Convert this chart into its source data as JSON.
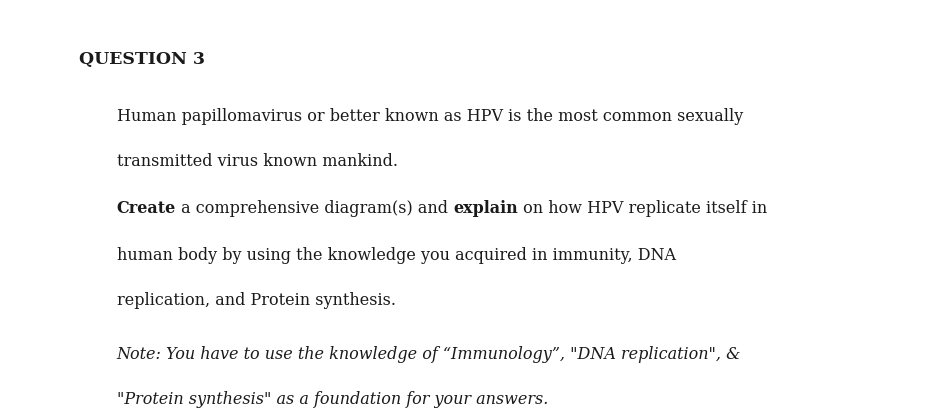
{
  "background_color": "#ffffff",
  "heading": "QUESTION 3",
  "paragraph1_line1": "Human papillomavirus or better known as HPV is the most common sexually",
  "paragraph1_line2": "transmitted virus known mankind.",
  "paragraph2_line1_pre": "Create",
  "paragraph2_line1_mid": " a comprehensive diagram(s) and ",
  "paragraph2_line1_bold2": "explain",
  "paragraph2_line1_post": " on how HPV replicate itself in",
  "paragraph2_line2": "human body by using the knowledge you acquired in immunity, DNA",
  "paragraph2_line3": "replication, and Protein synthesis.",
  "paragraph3_line1": "Note: You have to use the knowledge of “Immunology”, \"DNA replication\", &",
  "paragraph3_line2": "\"Protein synthesis\" as a foundation for your answers.",
  "text_color": "#1a1a1a",
  "figsize": [
    9.33,
    4.09
  ],
  "dpi": 100,
  "font_family": "serif",
  "base_fontsize": 11.5,
  "heading_fontsize": 12.5
}
